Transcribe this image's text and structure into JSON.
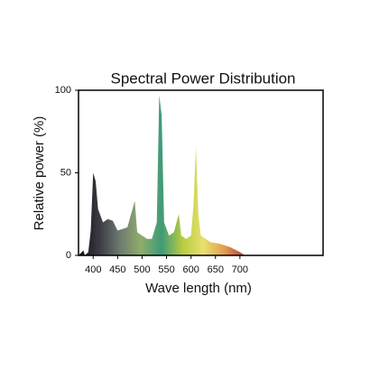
{
  "chart_data": {
    "type": "area",
    "title": "Spectral Power Distribution",
    "xlabel": "Wave length (nm)",
    "ylabel": "Relative power (%)",
    "x": [
      370,
      380,
      383,
      390,
      395,
      400,
      405,
      410,
      420,
      430,
      440,
      450,
      460,
      470,
      485,
      490,
      500,
      510,
      520,
      530,
      535,
      540,
      545,
      555,
      565,
      575,
      580,
      590,
      600,
      605,
      610,
      615,
      620,
      640,
      660,
      680,
      700,
      710
    ],
    "values": [
      0,
      3,
      0,
      2,
      15,
      50,
      45,
      28,
      20,
      22,
      21,
      15,
      16,
      17,
      33,
      14,
      12,
      10,
      10,
      20,
      97,
      85,
      20,
      12,
      14,
      25,
      12,
      10,
      12,
      30,
      66,
      25,
      12,
      8,
      7,
      5,
      2,
      0
    ],
    "colors": [
      "#111111",
      "#3a3a44",
      "#6e7a70",
      "#8fae6a",
      "#3f9a78",
      "#b8cc40",
      "#e8e070",
      "#e0a050",
      "#b83a40"
    ],
    "xlim": [
      370,
      870
    ],
    "ylim": [
      0,
      100
    ],
    "xticks": [
      400,
      450,
      500,
      550,
      600,
      650,
      700
    ],
    "yticks": [
      0,
      50,
      100
    ]
  }
}
